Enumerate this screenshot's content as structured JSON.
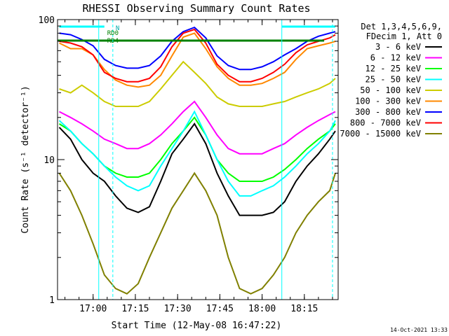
{
  "chart_data": {
    "type": "line",
    "title": "RHESSI Observing Summary Count Rates",
    "xlabel": "Start Time (12-May-08 16:47:22)",
    "ylabel": "Count Rate (s⁻¹ detector⁻¹)",
    "y_scale": "log",
    "xlim": [
      "16:47:22",
      "18:27:00"
    ],
    "ylim": [
      1,
      100
    ],
    "x_ticks": [
      "17:00",
      "17:15",
      "17:30",
      "17:45",
      "18:00",
      "18:15"
    ],
    "y_ticks": [
      "1",
      "10",
      "100"
    ],
    "legend_header": [
      "Det 1,3,4,5,6,9,",
      "FDecim 1, Att 0"
    ],
    "legend_position": "right",
    "flag_labels": [
      "RD0",
      "RD4",
      "N"
    ],
    "timestamp": "14-Oct-2021 13:33",
    "x": [
      "16:48",
      "16:52",
      "16:56",
      "17:00",
      "17:04",
      "17:08",
      "17:12",
      "17:16",
      "17:20",
      "17:24",
      "17:28",
      "17:32",
      "17:36",
      "17:40",
      "17:44",
      "17:48",
      "17:52",
      "17:56",
      "18:00",
      "18:04",
      "18:08",
      "18:12",
      "18:16",
      "18:20",
      "18:24",
      "18:26"
    ],
    "series": [
      {
        "name": "3 - 6 keV",
        "color": "#000000",
        "values": [
          17,
          14,
          10,
          8,
          7,
          5.5,
          4.5,
          4.2,
          4.6,
          7,
          11,
          14,
          18,
          13,
          8,
          5.5,
          4,
          4,
          4,
          4.2,
          5,
          7,
          9,
          11,
          14,
          16
        ]
      },
      {
        "name": "6 - 12 keV",
        "color": "#ff00ff",
        "values": [
          22,
          20,
          18,
          16,
          14,
          13,
          12,
          12,
          13,
          15,
          18,
          22,
          26,
          20,
          15,
          12,
          11,
          11,
          11,
          12,
          13,
          15,
          17,
          19,
          21,
          22
        ]
      },
      {
        "name": "12 - 25 keV",
        "color": "#00ff00",
        "values": [
          18,
          16,
          13,
          11,
          9,
          8,
          7.5,
          7.5,
          8,
          10,
          13,
          16,
          20,
          15,
          10,
          8,
          7,
          7,
          7,
          7.5,
          8.5,
          10,
          12,
          14,
          16,
          18
        ]
      },
      {
        "name": "25 - 50 keV",
        "color": "#00ffff",
        "values": [
          19,
          16,
          13,
          11,
          9,
          7.5,
          6.5,
          6,
          6.5,
          9,
          12,
          16,
          22,
          15,
          10,
          7,
          5.5,
          5.5,
          6,
          6.5,
          7.5,
          9,
          11,
          13,
          16,
          19
        ]
      },
      {
        "name": "50 - 100 keV",
        "color": "#cccc00",
        "values": [
          32,
          30,
          34,
          30,
          26,
          24,
          24,
          24,
          26,
          32,
          40,
          50,
          42,
          35,
          28,
          25,
          24,
          24,
          24,
          25,
          26,
          28,
          30,
          32,
          35,
          38
        ]
      },
      {
        "name": "100 - 300 keV",
        "color": "#ff8800",
        "values": [
          68,
          62,
          62,
          56,
          44,
          37,
          34,
          33,
          34,
          40,
          55,
          75,
          80,
          62,
          46,
          38,
          34,
          34,
          35,
          38,
          42,
          52,
          62,
          65,
          68,
          70
        ]
      },
      {
        "name": "300 - 800 keV",
        "color": "#0000ff",
        "values": [
          80,
          78,
          72,
          65,
          52,
          47,
          45,
          45,
          47,
          55,
          70,
          82,
          88,
          74,
          55,
          47,
          44,
          44,
          46,
          50,
          56,
          62,
          70,
          76,
          80,
          82
        ]
      },
      {
        "name": "800 - 7000 keV",
        "color": "#ff0000",
        "values": [
          70,
          68,
          64,
          56,
          42,
          38,
          36,
          36,
          38,
          46,
          64,
          80,
          85,
          68,
          48,
          40,
          36,
          36,
          38,
          42,
          48,
          58,
          66,
          70,
          74,
          78
        ]
      },
      {
        "name": "7000 - 15000 keV",
        "color": "#808000",
        "values": [
          8,
          6,
          4,
          2.5,
          1.5,
          1.2,
          1.1,
          1.3,
          2,
          3,
          4.5,
          6,
          8,
          6,
          4,
          2,
          1.2,
          1.1,
          1.2,
          1.5,
          2,
          3,
          4,
          5,
          6,
          8
        ]
      }
    ]
  }
}
